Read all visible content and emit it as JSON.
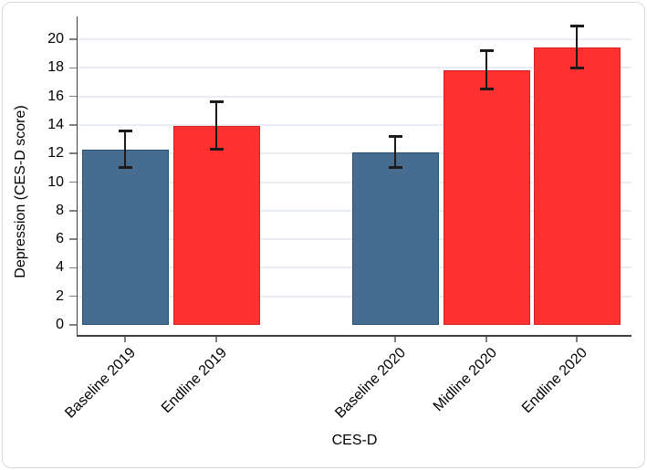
{
  "figure": {
    "background_color": "#FFFFFF",
    "border_color": "#D9D9D9"
  },
  "chart_data": {
    "type": "bar",
    "title": "",
    "xlabel": "CES-D",
    "ylabel": "Depression (CES-D score)",
    "categories": [
      "Baseline 2019",
      "Endline 2019",
      "Baseline 2020",
      "Midline 2020",
      "Endline 2020"
    ],
    "values": [
      12.3,
      13.9,
      12.1,
      17.8,
      19.4
    ],
    "error_low": [
      11.0,
      12.3,
      11.0,
      16.5,
      18.0
    ],
    "error_high": [
      13.6,
      15.6,
      13.2,
      19.2,
      20.9
    ],
    "groups": [
      [
        "Baseline 2019",
        "Endline 2019"
      ],
      [
        "Baseline 2020",
        "Midline 2020",
        "Endline 2020"
      ]
    ],
    "bar_colors": [
      "#466C8F",
      "#FF3130",
      "#466C8F",
      "#FF3130",
      "#FF3130"
    ],
    "bar_border_colors": [
      "#2B506F",
      "#D42421",
      "#2B506F",
      "#D42421",
      "#D42421"
    ],
    "error_bar_color": "#1A1A1A",
    "ylim": [
      0,
      21.5
    ],
    "yticks": [
      0,
      2,
      4,
      6,
      8,
      10,
      12,
      14,
      16,
      18,
      20
    ],
    "ytick_labels": [
      "0",
      "2",
      "4",
      "6",
      "8",
      "10",
      "12",
      "14",
      "16",
      "18",
      "20"
    ],
    "grid": "horizontal",
    "gridline_color": "#E8EEF4",
    "axis_color": "#404040",
    "tick_color": "#808080",
    "legend": "none"
  }
}
